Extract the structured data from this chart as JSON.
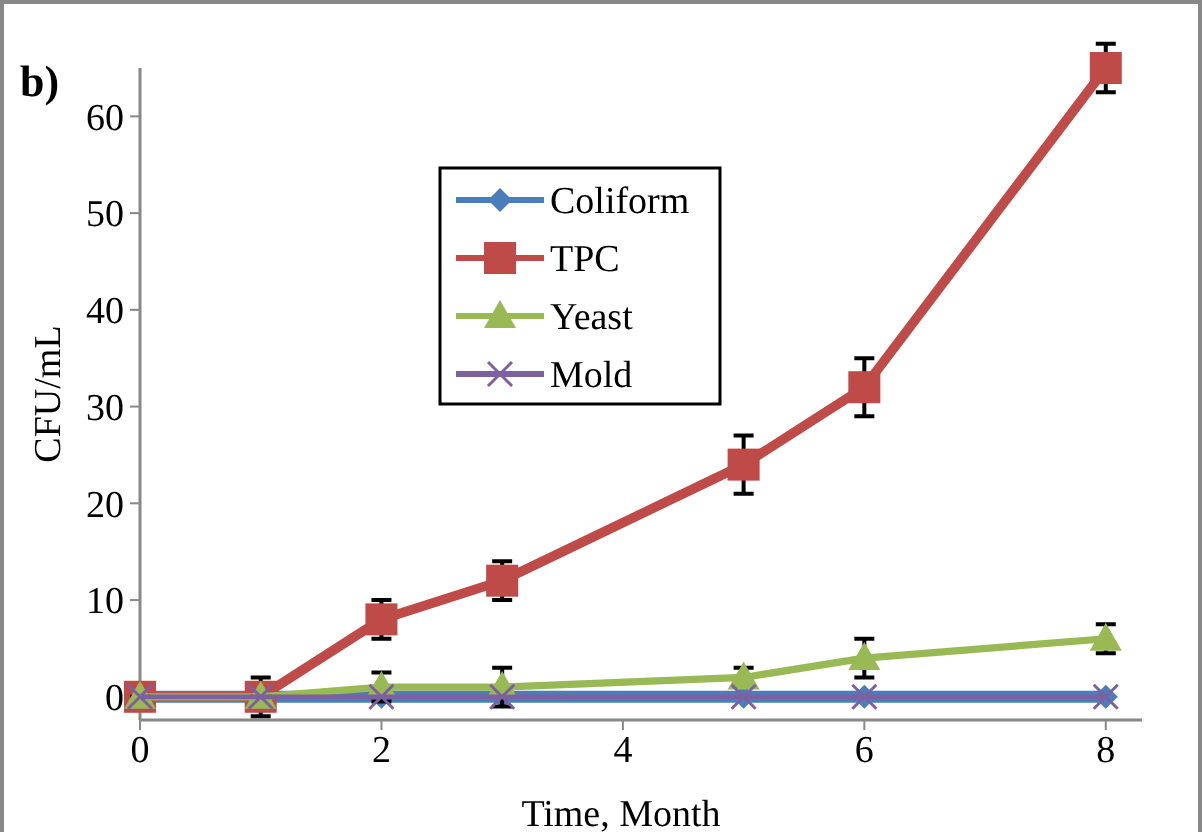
{
  "chart_data": {
    "type": "line",
    "xlabel": "Time, Month",
    "ylabel": "CFU/mL",
    "annotations": [
      "b)"
    ],
    "x": [
      0,
      1,
      2,
      3,
      5,
      6,
      8
    ],
    "xlim": [
      0,
      8.3
    ],
    "xticks": [
      0,
      2,
      4,
      6,
      8
    ],
    "ylim": [
      -2.4,
      65
    ],
    "yticks": [
      0,
      10,
      20,
      30,
      40,
      50,
      60
    ],
    "grid": false,
    "legend": "top left",
    "series": [
      {
        "name": "Coliform",
        "color": "#4a7ebb",
        "marker": "diamond",
        "values": [
          0,
          0,
          0,
          0,
          0,
          0,
          0
        ]
      },
      {
        "name": "TPC",
        "color": "#be4b48",
        "marker": "square",
        "values": [
          0,
          0,
          8,
          12,
          24,
          32,
          65
        ],
        "errors": [
          0,
          2,
          2,
          2,
          3,
          3,
          2.5
        ]
      },
      {
        "name": "Yeast",
        "color": "#98b954",
        "marker": "triangle",
        "values": [
          0,
          0,
          1,
          1,
          2,
          4,
          6
        ],
        "errors": [
          0,
          0,
          1.5,
          2,
          1,
          2,
          1.5
        ]
      },
      {
        "name": "Mold",
        "color": "#7d60a0",
        "marker": "cross",
        "values": [
          0,
          0,
          0,
          0,
          0,
          0,
          0
        ]
      }
    ]
  }
}
